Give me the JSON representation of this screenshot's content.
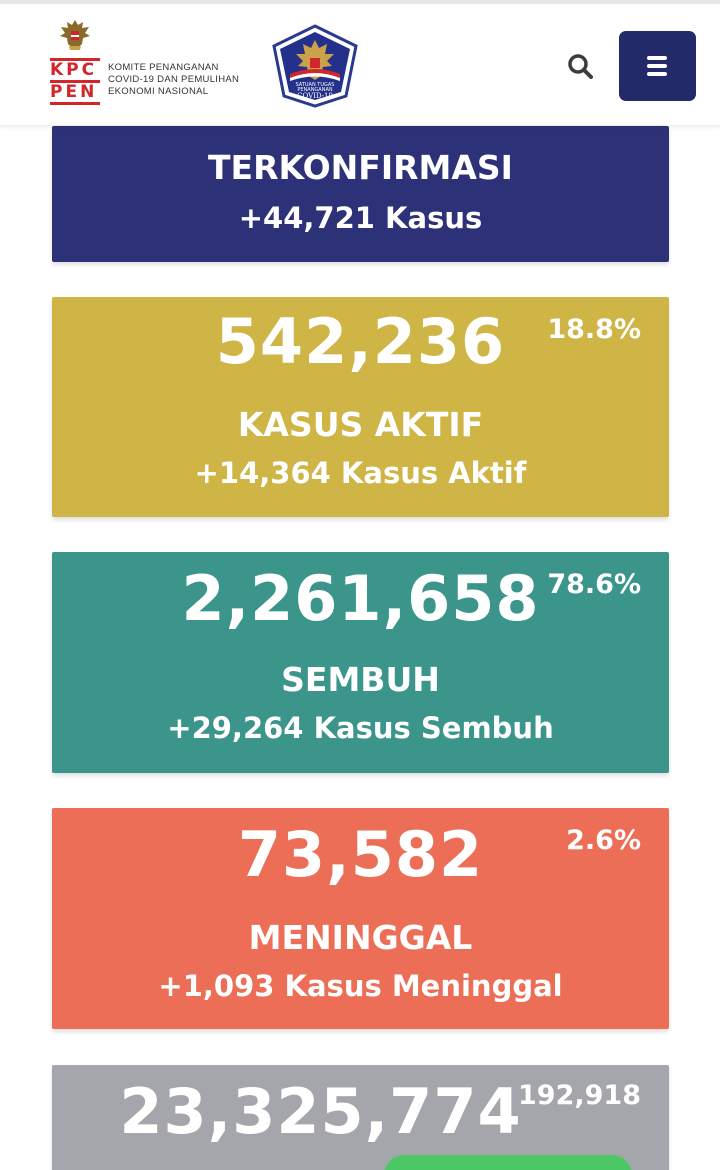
{
  "header": {
    "logo_initials_top": "KPC",
    "logo_initials_bottom": "PEN",
    "logo_text_line1": "KOMITE PENANGANAN",
    "logo_text_line2": "COVID-19 DAN PEMULIHAN",
    "logo_text_line3": "EKONOMI NASIONAL",
    "satgas_text_top": "SATUAN TUGAS",
    "satgas_text_mid": "PENANGANAN",
    "satgas_text_bottom": "COVID-19",
    "colors": {
      "menu_bg": "#222a6a",
      "kpc_red": "#d1262b"
    }
  },
  "cards": {
    "terkonfirmasi": {
      "label": "TERKONFIRMASI",
      "delta": "+44,721 Kasus",
      "color": "#2d3178"
    },
    "aktif": {
      "value": "542,236",
      "percent": "18.8%",
      "label": "KASUS AKTIF",
      "delta": "+14,364 Kasus Aktif",
      "color": "#cfb545"
    },
    "sembuh": {
      "value": "2,261,658",
      "percent": "78.6%",
      "label": "SEMBUH",
      "delta": "+29,264 Kasus Sembuh",
      "color": "#3c958b"
    },
    "meninggal": {
      "value": "73,582",
      "percent": "2.6%",
      "label": "MENINGGAL",
      "delta": "+1,093 Kasus Meninggal",
      "color": "#ed6e56"
    },
    "spesimen": {
      "value": "23,325,774",
      "delta_partial": "192,918",
      "color": "#a5a6ac"
    }
  },
  "icons": [
    "garuda-icon",
    "satgas-shield-icon",
    "search-icon",
    "hamburger-menu-icon"
  ]
}
